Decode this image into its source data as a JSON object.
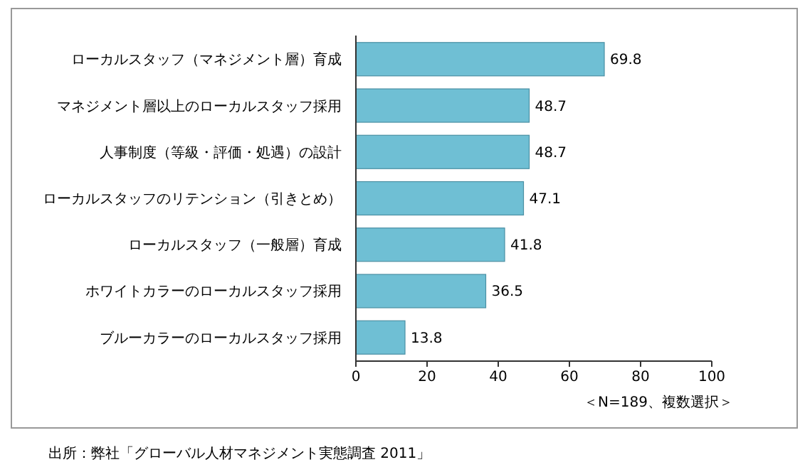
{
  "chart_data": {
    "type": "bar",
    "orientation": "horizontal",
    "categories": [
      "ローカルスタッフ（マネジメント層）育成",
      "マネジメント層以上のローカルスタッフ採用",
      "人事制度（等級・評価・処遇）の設計",
      "ローカルスタッフのリテンション（引きとめ）",
      "ローカルスタッフ（一般層）育成",
      "ホワイトカラーのローカルスタッフ採用",
      "ブルーカラーのローカルスタッフ採用"
    ],
    "values": [
      69.8,
      48.7,
      48.7,
      47.1,
      41.8,
      36.5,
      13.8
    ],
    "color": "#6fbfd4",
    "data_labels": true,
    "xlim": [
      0,
      100
    ],
    "xticks": [
      0,
      20,
      40,
      60,
      80,
      100
    ],
    "grid": false,
    "annotations": [
      "＜N=189、複数選択＞",
      "出所：弊社「グローバル人材マネジメント実態調査 2011」"
    ]
  }
}
